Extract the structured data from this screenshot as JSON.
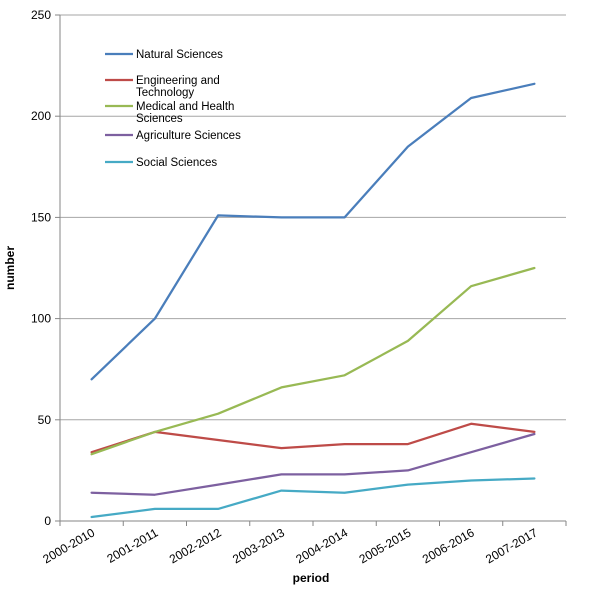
{
  "chart_data": {
    "type": "line",
    "title": "",
    "xlabel": "period",
    "ylabel": "number",
    "ylim": [
      0,
      250
    ],
    "yticks": [
      0,
      50,
      100,
      150,
      200,
      250
    ],
    "grid": true,
    "legend_position": "top-left",
    "categories": [
      "2000-2010",
      "2001-2011",
      "2002-2012",
      "2003-2013",
      "2004-2014",
      "2005-2015",
      "2006-2016",
      "2007-2017"
    ],
    "series": [
      {
        "name": "Natural Sciences",
        "legend_lines": [
          "Natural Sciences"
        ],
        "color": "#4a7ebb",
        "values": [
          70,
          100,
          151,
          150,
          150,
          185,
          209,
          216
        ]
      },
      {
        "name": "Engineering and Technology",
        "legend_lines": [
          "Engineering and",
          "Technology"
        ],
        "color": "#be4b48",
        "values": [
          34,
          44,
          40,
          36,
          38,
          38,
          48,
          44
        ]
      },
      {
        "name": "Medical and Health Sciences",
        "legend_lines": [
          "Medical and Health",
          "Sciences"
        ],
        "color": "#98b954",
        "values": [
          33,
          44,
          53,
          66,
          72,
          89,
          116,
          125
        ]
      },
      {
        "name": "Agriculture Sciences",
        "legend_lines": [
          "Agriculture Sciences"
        ],
        "color": "#7d60a0",
        "values": [
          14,
          13,
          18,
          23,
          23,
          25,
          34,
          43
        ]
      },
      {
        "name": "Social Sciences",
        "legend_lines": [
          "Social Sciences"
        ],
        "color": "#46aac5",
        "values": [
          2,
          6,
          6,
          15,
          14,
          18,
          20,
          21
        ]
      }
    ]
  }
}
